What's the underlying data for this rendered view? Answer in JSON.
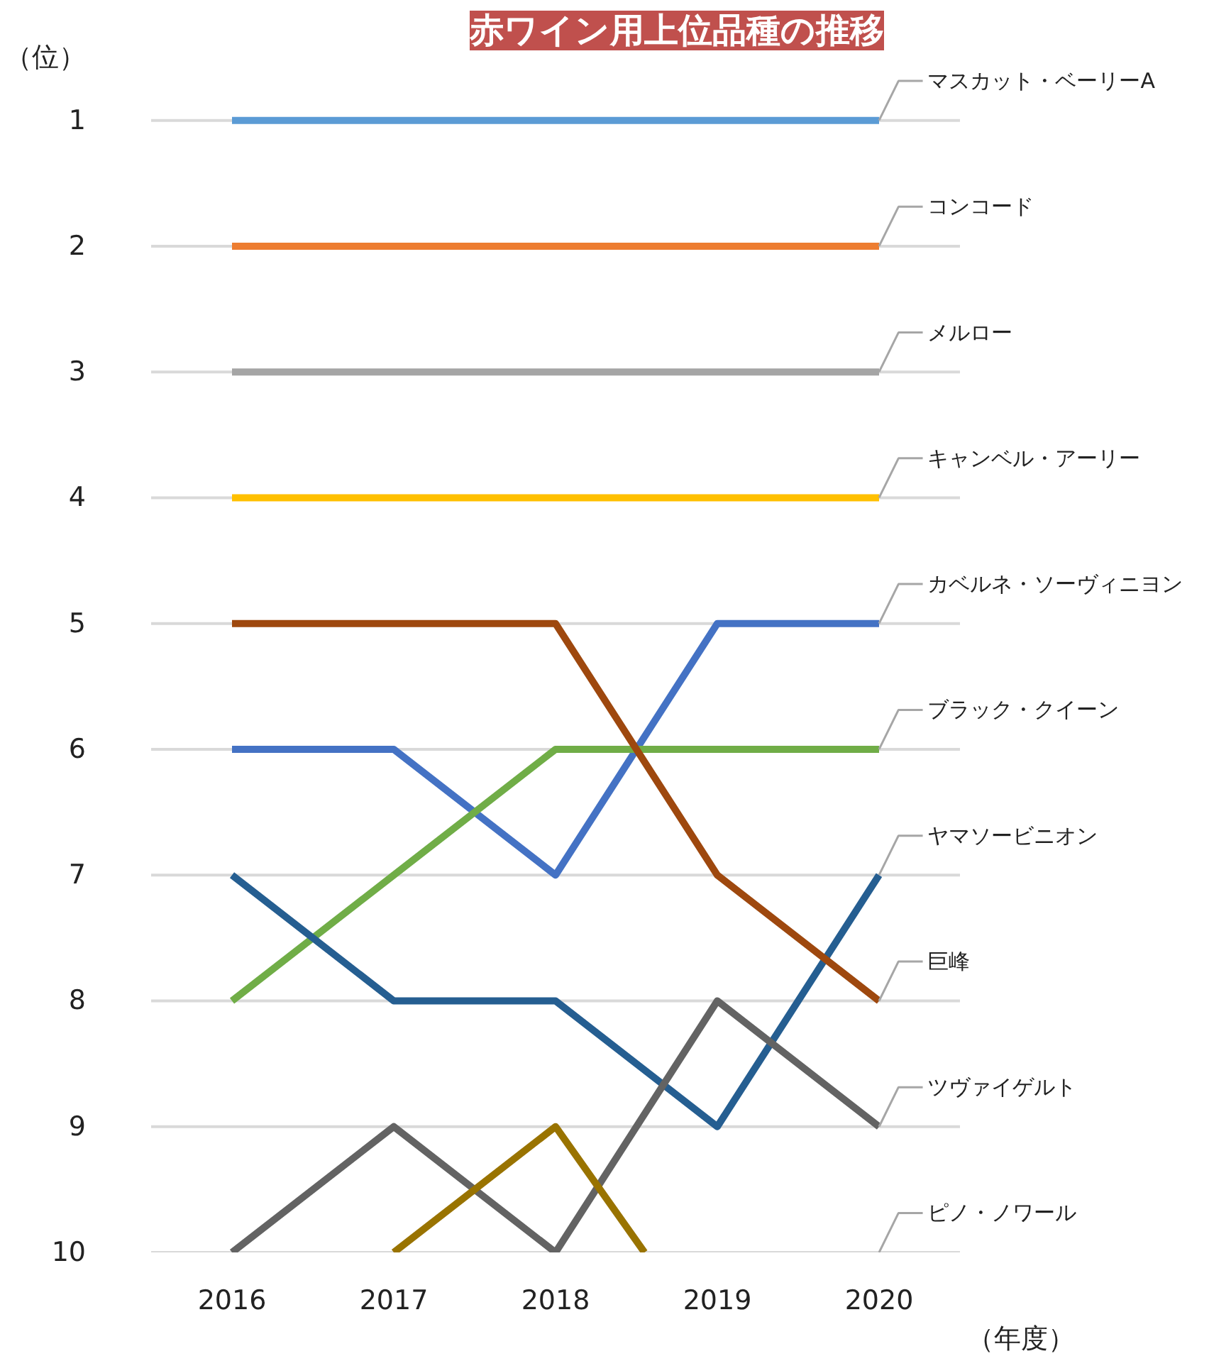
{
  "chart_data": {
    "type": "line",
    "title": "赤ワイン用上位品種の推移",
    "xlabel": "（年度）",
    "x": [
      2016,
      2017,
      2018,
      2019,
      2020
    ],
    "xlim": [
      2015.5,
      2020.5
    ],
    "xticks": [
      2016,
      2017,
      2018,
      2019,
      2020
    ],
    "ylim": [
      10,
      0.5
    ],
    "yticks": [
      {
        "value": 0.5,
        "label": "（位）"
      },
      1,
      2,
      3,
      4,
      5,
      6,
      7,
      8,
      9,
      10
    ],
    "grid": "y",
    "marker": "none",
    "line_style": "solid",
    "series": [
      {
        "name": "マスカット・ベーリーA",
        "color": "#5b9bd5",
        "values": [
          1,
          1,
          1,
          1,
          1
        ]
      },
      {
        "name": "コンコード",
        "color": "#ed7d31",
        "values": [
          2,
          2,
          2,
          2,
          2
        ]
      },
      {
        "name": "メルロー",
        "color": "#a5a5a5",
        "values": [
          3,
          3,
          3,
          3,
          3
        ]
      },
      {
        "name": "キャンベル・アーリー",
        "color": "#ffc000",
        "values": [
          4,
          4,
          4,
          4,
          4
        ]
      },
      {
        "name": "カベルネ・ソーヴィニヨン",
        "color": "#4472c4",
        "values": [
          6,
          6,
          7,
          5,
          5
        ]
      },
      {
        "name": "ブラック・クイーン",
        "color": "#70ad47",
        "values": [
          8,
          7,
          6,
          6,
          6
        ]
      },
      {
        "name": "ヤマソービニオン",
        "color": "#255e91",
        "values": [
          7,
          8,
          8,
          9,
          7
        ]
      },
      {
        "name": "巨峰",
        "color": "#9e480e",
        "values": [
          5,
          5,
          5,
          7,
          8
        ]
      },
      {
        "name": "ツヴァイゲルト",
        "color": "#636363",
        "values": [
          10,
          9,
          10,
          8,
          9
        ]
      },
      {
        "name": "ピノ・ノワール",
        "color": "#997300",
        "x": [
          2017,
          2018,
          2018.55
        ],
        "values": [
          10,
          9,
          10
        ]
      }
    ]
  }
}
